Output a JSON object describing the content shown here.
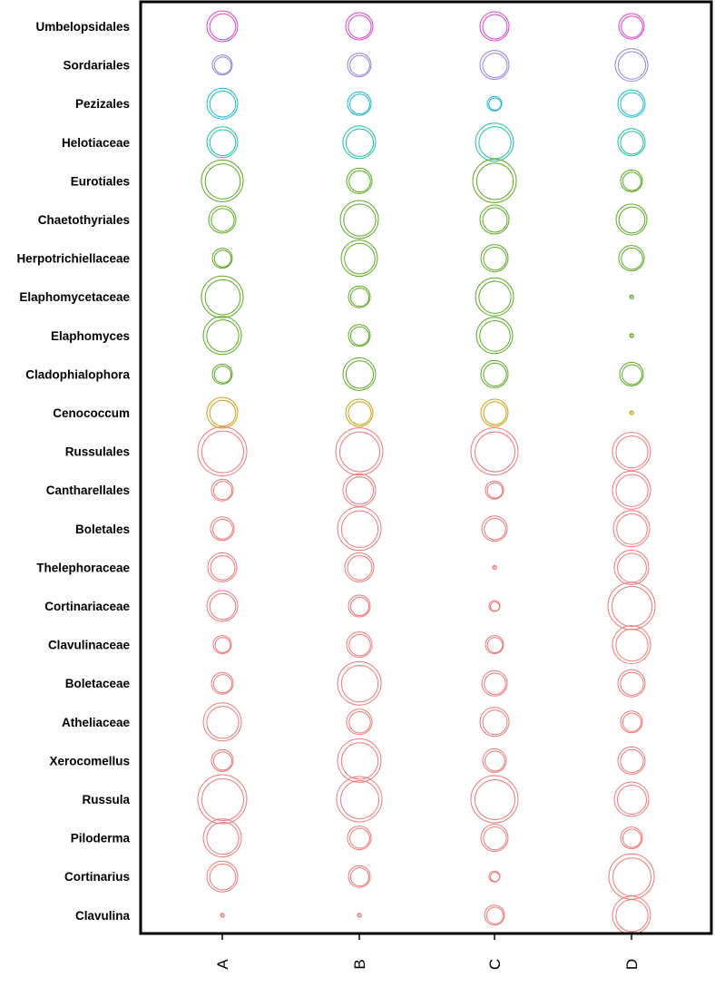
{
  "chart_data": {
    "type": "bubble",
    "title": "",
    "xlabel": "",
    "ylabel": "",
    "categories": [
      "A",
      "B",
      "C",
      "D"
    ],
    "rows": [
      {
        "label": "Umbelopsidales",
        "color": "#e040c8",
        "values": [
          17,
          15,
          16,
          14
        ]
      },
      {
        "label": "Sordariales",
        "color": "#9a7fe0",
        "values": [
          11,
          13,
          16,
          18
        ]
      },
      {
        "label": "Pezizales",
        "color": "#1ab8d4",
        "values": [
          17,
          13,
          8,
          15
        ]
      },
      {
        "label": "Helotiaceae",
        "color": "#1ebfa0",
        "values": [
          17,
          18,
          21,
          15
        ]
      },
      {
        "label": "Eurotiales",
        "color": "#5aaa20",
        "values": [
          23,
          14,
          24,
          12
        ]
      },
      {
        "label": "Chaetothyriales",
        "color": "#5aaa20",
        "values": [
          15,
          21,
          16,
          17
        ]
      },
      {
        "label": "Herpotrichiellaceae",
        "color": "#5aaa20",
        "values": [
          11,
          20,
          15,
          14
        ]
      },
      {
        "label": "Elaphomycetaceae",
        "color": "#5aaa20",
        "values": [
          23,
          12,
          21,
          2
        ]
      },
      {
        "label": "Elaphomyces",
        "color": "#5aaa20",
        "values": [
          21,
          12,
          20,
          2
        ]
      },
      {
        "label": "Cladophialophora",
        "color": "#5aaa20",
        "values": [
          11,
          18,
          15,
          13
        ]
      },
      {
        "label": "Cenococcum",
        "color": "#c8a010",
        "values": [
          17,
          15,
          15,
          2
        ]
      },
      {
        "label": "Russulales",
        "color": "#f07878",
        "values": [
          27,
          26,
          26,
          21
        ]
      },
      {
        "label": "Cantharellales",
        "color": "#f07878",
        "values": [
          12,
          18,
          10,
          21
        ]
      },
      {
        "label": "Boletales",
        "color": "#f07878",
        "values": [
          13,
          24,
          14,
          20
        ]
      },
      {
        "label": "Thelephoraceae",
        "color": "#f07878",
        "values": [
          16,
          16,
          2,
          19
        ]
      },
      {
        "label": "Cortinariaceae",
        "color": "#f07878",
        "values": [
          17,
          12,
          6,
          26
        ]
      },
      {
        "label": "Clavulinaceae",
        "color": "#f07878",
        "values": [
          10,
          14,
          10,
          21
        ]
      },
      {
        "label": "Boletaceae",
        "color": "#f07878",
        "values": [
          12,
          24,
          14,
          15
        ]
      },
      {
        "label": "Atheliaceae",
        "color": "#f07878",
        "values": [
          21,
          14,
          16,
          12
        ]
      },
      {
        "label": "Xerocomellus",
        "color": "#f07878",
        "values": [
          12,
          24,
          13,
          15
        ]
      },
      {
        "label": "Russula",
        "color": "#f07878",
        "values": [
          27,
          25,
          26,
          19
        ]
      },
      {
        "label": "Piloderma",
        "color": "#f07878",
        "values": [
          21,
          13,
          15,
          12
        ]
      },
      {
        "label": "Cortinarius",
        "color": "#f07878",
        "values": [
          17,
          12,
          6,
          25
        ]
      },
      {
        "label": "Clavulina",
        "color": "#f07878",
        "values": [
          2,
          2,
          11,
          21
        ]
      }
    ],
    "grid": false,
    "legend": "none"
  }
}
